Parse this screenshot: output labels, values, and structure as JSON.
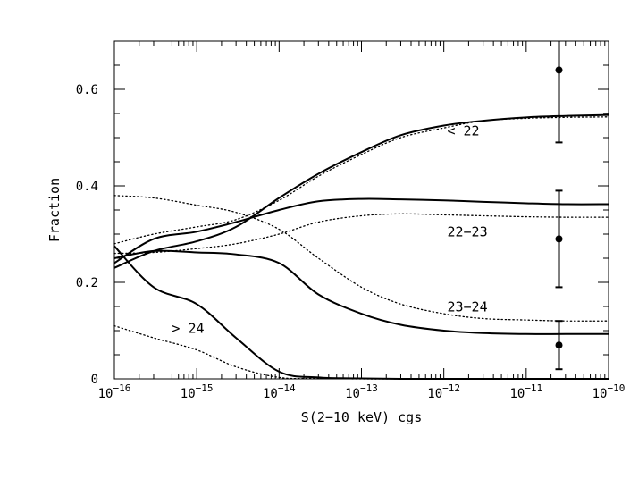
{
  "chart_data": {
    "type": "line",
    "title": "",
    "xlabel": "S(2−10 keV) cgs",
    "ylabel": "Fraction",
    "xscale": "log",
    "xlim": [
      1e-16,
      1e-10
    ],
    "ylim": [
      0,
      0.7
    ],
    "grid": false,
    "xticks": [
      {
        "value": 1e-16,
        "base": "10",
        "exp": "−16"
      },
      {
        "value": 1e-15,
        "base": "10",
        "exp": "−15"
      },
      {
        "value": 1e-14,
        "base": "10",
        "exp": "−14"
      },
      {
        "value": 1e-13,
        "base": "10",
        "exp": "−13"
      },
      {
        "value": 1e-12,
        "base": "10",
        "exp": "−12"
      },
      {
        "value": 1e-11,
        "base": "10",
        "exp": "−11"
      },
      {
        "value": 1e-10,
        "base": "10",
        "exp": "−10"
      }
    ],
    "yticks": [
      {
        "value": 0,
        "label": "0"
      },
      {
        "value": 0.2,
        "label": "0.2"
      },
      {
        "value": 0.4,
        "label": "0.4"
      },
      {
        "value": 0.6,
        "label": "0.6"
      }
    ],
    "series": [
      {
        "style": "solid",
        "color": "#000000",
        "x": [
          1e-16,
          3e-16,
          1e-15,
          3e-15,
          1e-14,
          3e-14,
          1e-13,
          3e-13,
          1e-12,
          3e-12,
          1e-11,
          3e-11,
          1e-10
        ],
        "y": [
          0.23,
          0.265,
          0.285,
          0.315,
          0.375,
          0.425,
          0.47,
          0.505,
          0.525,
          0.535,
          0.542,
          0.545,
          0.547
        ]
      },
      {
        "style": "dotted",
        "color": "#000000",
        "x": [
          1e-16,
          3e-16,
          1e-15,
          3e-15,
          1e-14,
          3e-14,
          1e-13,
          3e-13,
          1e-12,
          3e-12,
          1e-11,
          3e-11,
          1e-10
        ],
        "y": [
          0.28,
          0.3,
          0.315,
          0.33,
          0.37,
          0.42,
          0.465,
          0.5,
          0.52,
          0.535,
          0.54,
          0.542,
          0.543
        ]
      },
      {
        "style": "solid",
        "color": "#000000",
        "x": [
          1e-16,
          3e-16,
          1e-15,
          3e-15,
          1e-14,
          3e-14,
          1e-13,
          3e-13,
          1e-12,
          3e-12,
          1e-11,
          3e-11,
          1e-10
        ],
        "y": [
          0.24,
          0.29,
          0.305,
          0.325,
          0.35,
          0.368,
          0.373,
          0.372,
          0.37,
          0.367,
          0.364,
          0.362,
          0.362
        ]
      },
      {
        "style": "dotted",
        "color": "#000000",
        "x": [
          1e-16,
          3e-16,
          1e-15,
          3e-15,
          1e-14,
          3e-14,
          1e-13,
          3e-13,
          1e-12,
          3e-12,
          1e-11,
          3e-11,
          1e-10
        ],
        "y": [
          0.26,
          0.262,
          0.27,
          0.28,
          0.3,
          0.325,
          0.338,
          0.342,
          0.34,
          0.338,
          0.336,
          0.335,
          0.335
        ]
      },
      {
        "style": "solid",
        "color": "#000000",
        "x": [
          1e-16,
          3e-16,
          1e-15,
          3e-15,
          1e-14,
          3e-14,
          1e-13,
          3e-13,
          1e-12,
          3e-12,
          1e-11,
          3e-11,
          1e-10
        ],
        "y": [
          0.25,
          0.265,
          0.262,
          0.258,
          0.24,
          0.175,
          0.135,
          0.112,
          0.1,
          0.095,
          0.093,
          0.093,
          0.093
        ]
      },
      {
        "style": "dotted",
        "color": "#000000",
        "x": [
          1e-16,
          3e-16,
          1e-15,
          3e-15,
          1e-14,
          3e-14,
          1e-13,
          3e-13,
          1e-12,
          3e-12,
          1e-11,
          3e-11,
          1e-10
        ],
        "y": [
          0.38,
          0.375,
          0.36,
          0.345,
          0.31,
          0.25,
          0.19,
          0.155,
          0.135,
          0.125,
          0.122,
          0.12,
          0.12
        ]
      },
      {
        "style": "solid",
        "color": "#000000",
        "x": [
          1e-16,
          3e-16,
          1e-15,
          3e-15,
          1e-14,
          3e-14,
          1e-13,
          3e-13,
          1e-12,
          3e-12,
          1e-11,
          3e-11,
          1e-10
        ],
        "y": [
          0.275,
          0.19,
          0.155,
          0.085,
          0.015,
          0.003,
          0.001,
          0,
          0,
          0,
          0,
          0,
          0
        ]
      },
      {
        "style": "dotted",
        "color": "#000000",
        "x": [
          1e-16,
          3e-16,
          1e-15,
          3e-15,
          1e-14,
          3e-14,
          1e-13,
          3e-13,
          1e-12,
          3e-12,
          1e-11,
          3e-11,
          1e-10
        ],
        "y": [
          0.11,
          0.085,
          0.06,
          0.025,
          0.003,
          0.001,
          0,
          0,
          0,
          0,
          0,
          0,
          0
        ]
      }
    ],
    "points": [
      {
        "x": 2.5e-11,
        "y": 0.64,
        "ylow": 0.49,
        "yhigh": 0.7
      },
      {
        "x": 2.5e-11,
        "y": 0.29,
        "ylow": 0.19,
        "yhigh": 0.39
      },
      {
        "x": 2.5e-11,
        "y": 0.07,
        "ylow": 0.02,
        "yhigh": 0.12
      }
    ],
    "annotations": [
      {
        "text": "< 22",
        "x": 1.1e-12,
        "y": 0.505
      },
      {
        "text": "22−23",
        "x": 1.1e-12,
        "y": 0.295
      },
      {
        "text": "23−24",
        "x": 1.1e-12,
        "y": 0.14
      },
      {
        "text": "> 24",
        "x": 5e-16,
        "y": 0.095
      }
    ]
  }
}
